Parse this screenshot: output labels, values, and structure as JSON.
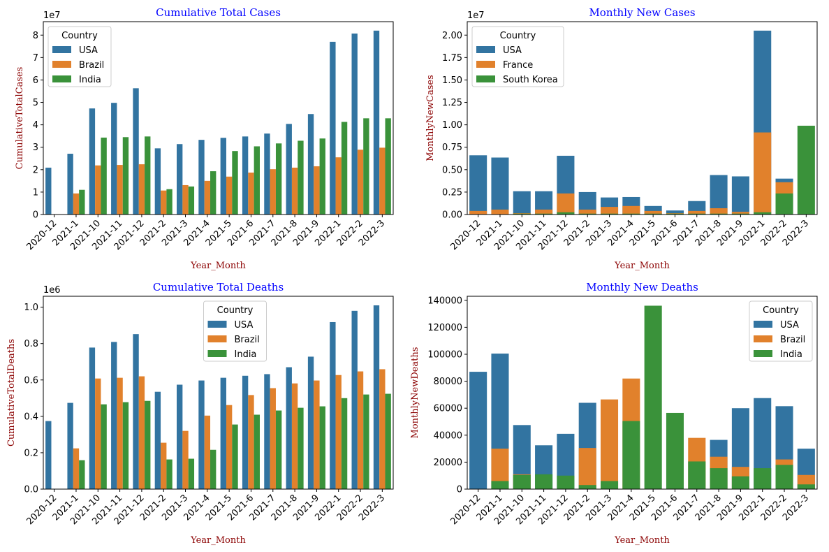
{
  "figure": {
    "colors": {
      "series1": "#3274a1",
      "series2": "#e1812c",
      "series3": "#3a923a",
      "title": "#0000ff",
      "axis_label": "#8b0000"
    }
  },
  "chart_data": [
    {
      "id": "cumulative-total-cases",
      "type": "bar",
      "mode": "grouped",
      "title": "Cumulative Total Cases",
      "xlabel": "Year_Month",
      "ylabel": "CumulativeTotalCases",
      "offset_text": "1e7",
      "scale": 10000000,
      "ylim": [
        0,
        8.6
      ],
      "yticks": [
        0,
        1,
        2,
        3,
        4,
        5,
        6,
        7,
        8
      ],
      "ytick_labels": [
        "0",
        "1",
        "2",
        "3",
        "4",
        "5",
        "6",
        "7",
        "8"
      ],
      "legend": {
        "title": "Country",
        "position": "upper-left"
      },
      "categories": [
        "2020-12",
        "2021-1",
        "2021-10",
        "2021-11",
        "2021-12",
        "2021-2",
        "2021-3",
        "2021-4",
        "2021-5",
        "2021-6",
        "2021-7",
        "2021-8",
        "2021-9",
        "2022-1",
        "2022-2",
        "2022-3"
      ],
      "series": [
        {
          "name": "USA",
          "values": [
            2.09,
            2.71,
            4.73,
            4.98,
            5.63,
            2.95,
            3.14,
            3.33,
            3.42,
            3.48,
            3.61,
            4.04,
            4.48,
            7.7,
            8.07,
            8.2
          ]
        },
        {
          "name": "Brazil",
          "values": [
            0,
            0.94,
            2.19,
            2.21,
            2.24,
            1.07,
            1.31,
            1.5,
            1.69,
            1.87,
            2.02,
            2.09,
            2.15,
            2.55,
            2.89,
            2.98
          ]
        },
        {
          "name": "India",
          "values": [
            0,
            1.1,
            3.43,
            3.45,
            3.48,
            1.13,
            1.25,
            1.93,
            2.83,
            3.04,
            3.17,
            3.29,
            3.39,
            4.13,
            4.29,
            4.29
          ]
        }
      ]
    },
    {
      "id": "monthly-new-cases",
      "type": "bar",
      "mode": "overlaid",
      "title": "Monthly New Cases",
      "xlabel": "Year_Month",
      "ylabel": "MonthlyNewCases",
      "offset_text": "1e7",
      "scale": 10000000,
      "ylim": [
        0,
        2.15
      ],
      "yticks": [
        0,
        0.25,
        0.5,
        0.75,
        1.0,
        1.25,
        1.5,
        1.75,
        2.0
      ],
      "ytick_labels": [
        "0.00",
        "0.25",
        "0.50",
        "0.75",
        "1.00",
        "1.25",
        "1.50",
        "1.75",
        "2.00"
      ],
      "legend": {
        "title": "Country",
        "position": "upper-left"
      },
      "categories": [
        "2020-12",
        "2021-1",
        "2021-10",
        "2021-11",
        "2021-12",
        "2021-2",
        "2021-3",
        "2021-4",
        "2021-5",
        "2021-6",
        "2021-7",
        "2021-8",
        "2021-9",
        "2022-1",
        "2022-2",
        "2022-3"
      ],
      "series": [
        {
          "name": "USA",
          "values": [
            0.66,
            0.635,
            0.26,
            0.26,
            0.655,
            0.25,
            0.19,
            0.195,
            0.095,
            0.045,
            0.15,
            0.44,
            0.425,
            2.05,
            0.4,
            0
          ]
        },
        {
          "name": "France",
          "values": [
            0.04,
            0.055,
            0.015,
            0.055,
            0.235,
            0.055,
            0.085,
            0.095,
            0.04,
            0.015,
            0.04,
            0.07,
            0.03,
            0.915,
            0.36,
            0
          ]
        },
        {
          "name": "South Korea",
          "values": [
            0.002,
            0.003,
            0.01,
            0.01,
            0.025,
            0.01,
            0.01,
            0.01,
            0.01,
            0.01,
            0.01,
            0.01,
            0.01,
            0.025,
            0.235,
            0.99
          ]
        }
      ]
    },
    {
      "id": "cumulative-total-deaths",
      "type": "bar",
      "mode": "grouped",
      "title": "Cumulative Total Deaths",
      "xlabel": "Year_Month",
      "ylabel": "CumulativeTotalDeaths",
      "offset_text": "1e6",
      "scale": 1000000,
      "ylim": [
        0,
        1.06
      ],
      "yticks": [
        0,
        0.2,
        0.4,
        0.6,
        0.8,
        1.0
      ],
      "ytick_labels": [
        "0.0",
        "0.2",
        "0.4",
        "0.6",
        "0.8",
        "1.0"
      ],
      "legend": {
        "title": "Country",
        "position": "upper-center"
      },
      "categories": [
        "2020-12",
        "2021-1",
        "2021-10",
        "2021-11",
        "2021-12",
        "2021-2",
        "2021-3",
        "2021-4",
        "2021-5",
        "2021-6",
        "2021-7",
        "2021-8",
        "2021-9",
        "2022-1",
        "2022-2",
        "2022-3"
      ],
      "series": [
        {
          "name": "USA",
          "values": [
            0.374,
            0.474,
            0.778,
            0.809,
            0.852,
            0.535,
            0.574,
            0.597,
            0.612,
            0.623,
            0.632,
            0.67,
            0.728,
            0.918,
            0.98,
            1.01
          ]
        },
        {
          "name": "Brazil",
          "values": [
            0,
            0.224,
            0.608,
            0.612,
            0.62,
            0.255,
            0.32,
            0.404,
            0.462,
            0.517,
            0.555,
            0.581,
            0.597,
            0.627,
            0.647,
            0.659
          ]
        },
        {
          "name": "India",
          "values": [
            0,
            0.159,
            0.466,
            0.478,
            0.485,
            0.163,
            0.167,
            0.216,
            0.355,
            0.409,
            0.432,
            0.447,
            0.455,
            0.5,
            0.52,
            0.524
          ]
        }
      ]
    },
    {
      "id": "monthly-new-deaths",
      "type": "bar",
      "mode": "overlaid",
      "title": "Monthly New Deaths",
      "xlabel": "Year_Month",
      "ylabel": "MonthlyNewDeaths",
      "offset_text": "",
      "scale": 1,
      "ylim": [
        0,
        143000
      ],
      "yticks": [
        0,
        20000,
        40000,
        60000,
        80000,
        100000,
        120000,
        140000
      ],
      "ytick_labels": [
        "0",
        "20000",
        "40000",
        "60000",
        "80000",
        "100000",
        "120000",
        "140000"
      ],
      "legend": {
        "title": "Country",
        "position": "upper-right"
      },
      "categories": [
        "2020-12",
        "2021-1",
        "2021-10",
        "2021-11",
        "2021-12",
        "2021-2",
        "2021-3",
        "2021-4",
        "2021-5",
        "2021-6",
        "2021-7",
        "2021-8",
        "2021-9",
        "2022-1",
        "2022-2",
        "2022-3"
      ],
      "series": [
        {
          "name": "USA",
          "values": [
            87000,
            100500,
            47500,
            32500,
            41000,
            64000,
            0,
            0,
            0,
            0,
            0,
            36500,
            60000,
            67500,
            61500,
            30000
          ]
        },
        {
          "name": "Brazil",
          "values": [
            0,
            30000,
            11000,
            0,
            0,
            30500,
            66500,
            82000,
            0,
            0,
            38000,
            24000,
            16500,
            0,
            22000,
            10500
          ]
        },
        {
          "name": "India",
          "values": [
            0,
            6000,
            10500,
            11000,
            10000,
            3000,
            6000,
            50500,
            136000,
            56500,
            20500,
            15500,
            9500,
            15500,
            18000,
            3500
          ]
        }
      ]
    }
  ]
}
